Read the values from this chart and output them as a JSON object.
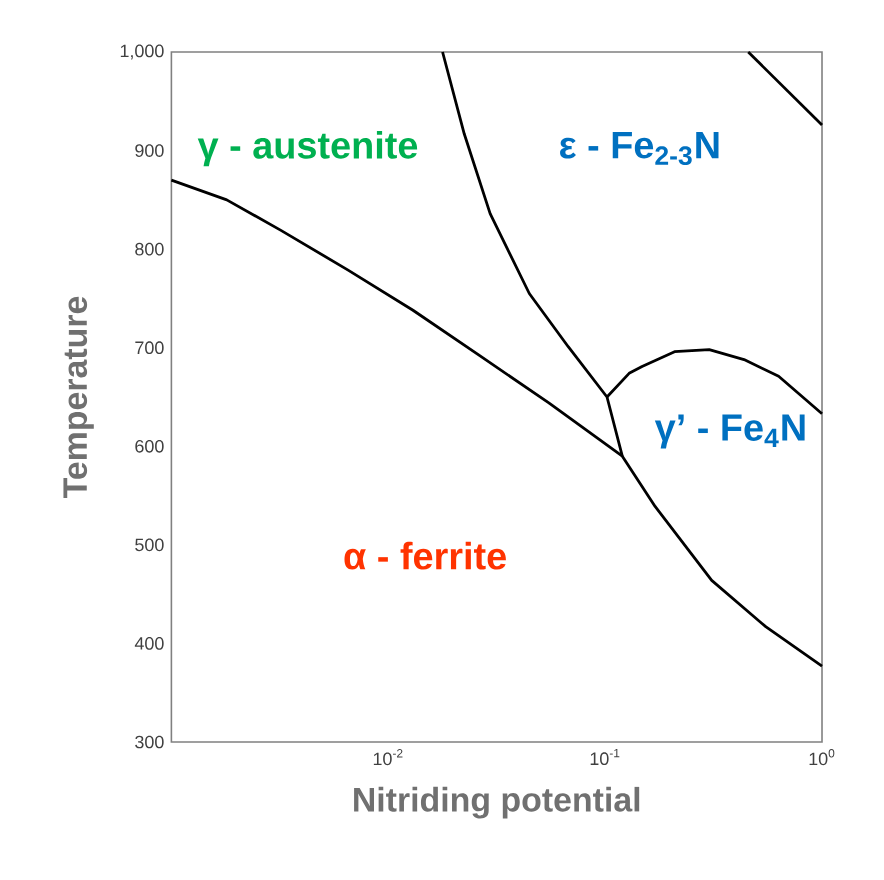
{
  "chart_data": {
    "type": "line",
    "xlabel": "Nitriding potential",
    "ylabel": "Temperature",
    "log": "x",
    "xlim": [
      0.001,
      1
    ],
    "ylim": [
      300,
      1000
    ],
    "xticks": [
      {
        "value": 0.01,
        "label": "10$^{-2}$"
      },
      {
        "value": 0.1,
        "label": "10$^{-1}$"
      },
      {
        "value": 1,
        "label": "10$^{0}$"
      }
    ],
    "yticks": [
      300,
      400,
      500,
      600,
      700,
      800,
      900,
      {
        "value": 1000,
        "label": "1,000"
      }
    ],
    "grid": false,
    "marker": "none",
    "line_style": "solid",
    "series": [
      {
        "color": "#000000",
        "x": [
          0.001,
          0.0018,
          0.0032,
          0.0065,
          0.013,
          0.026,
          0.055,
          0.12,
          0.17,
          0.31,
          0.55,
          1
        ],
        "values": [
          870,
          850,
          819,
          779,
          738,
          693,
          644,
          590,
          539,
          464,
          417,
          377
        ]
      },
      {
        "color": "#000000",
        "x": [
          0.0178,
          0.0224,
          0.0295,
          0.0447,
          0.0676,
          0.102,
          0.12
        ],
        "values": [
          1000,
          917,
          836,
          755,
          701,
          650,
          590
        ]
      },
      {
        "color": "#000000",
        "x": [
          0.102,
          0.129,
          0.148,
          0.209,
          0.302,
          0.437,
          0.631,
          1
        ],
        "values": [
          650,
          674,
          681,
          696,
          698,
          688,
          671,
          633
        ]
      },
      {
        "color": "#000000",
        "x": [
          0.457,
          1
        ],
        "values": [
          1000,
          926
        ]
      }
    ],
    "annotations": [
      "γ - austenite",
      "ε - Fe$_{2-3}$N",
      "γ’ - Fe$_{4}$N",
      "α - ferrite"
    ]
  }
}
